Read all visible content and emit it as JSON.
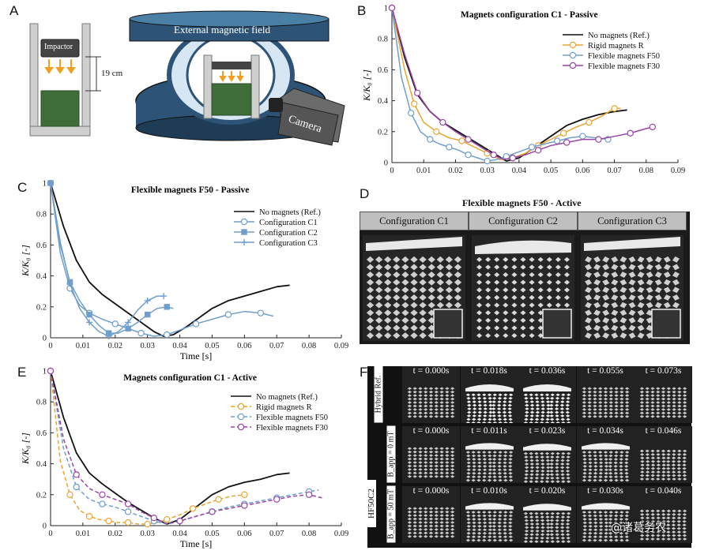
{
  "figure": {
    "panel_a": {
      "label": "A",
      "impactor": "Impactor",
      "distance": "19 cm",
      "field": "External magnetic field",
      "camera": "Camera"
    },
    "panel_b": {
      "label": "B",
      "title": "Magnets configuration C1 - Passive",
      "ylabel": "K/K₀ [-]"
    },
    "panel_c": {
      "label": "C",
      "title": "Flexible magnets F50 - Passive",
      "xlabel": "Time [s]",
      "ylabel": "K/K₀ [-]"
    },
    "panel_d": {
      "label": "D",
      "title": "Flexible magnets F50 - Active",
      "columns": [
        "Configuration C1",
        "Configuration C2",
        "Configuration C3"
      ]
    },
    "panel_e": {
      "label": "E",
      "title": "Magnets configuration C1 - Active",
      "xlabel": "Time [s]",
      "ylabel": "K/K₀ [-]"
    },
    "panel_f": {
      "label": "F",
      "rows": [
        {
          "label": "Hybrid Ref.",
          "times": [
            "t = 0.000s",
            "t = 0.018s",
            "t = 0.036s",
            "t = 0.055s",
            "t = 0.073s"
          ]
        },
        {
          "label": "B_app = 0 mT",
          "times": [
            "t = 0.000s",
            "t = 0.011s",
            "t = 0.023s",
            "t = 0.034s",
            "t = 0.046s"
          ]
        },
        {
          "label": "B_app = 50 mT",
          "times": [
            "t = 0.000s",
            "t = 0.010s",
            "t = 0.020s",
            "t = 0.030s",
            "t = 0.040s"
          ]
        }
      ],
      "group_label": "HF50C2"
    },
    "watermark": "@诸葛务农"
  },
  "colors": {
    "black": "#111111",
    "orange": "#e8a530",
    "blue": "#6f9fcc",
    "purple": "#9b44a8",
    "navy": "#2d5477"
  },
  "chart_data": [
    {
      "id": "B",
      "type": "line",
      "title": "Magnets configuration C1 - Passive",
      "xlabel": "",
      "ylabel": "K/K₀ [-]",
      "xlim": [
        0,
        0.09
      ],
      "ylim": [
        0,
        1
      ],
      "xticks": [
        "0",
        "0.01",
        "0.02",
        "0.03",
        "0.04",
        "0.05",
        "0.06",
        "0.07",
        "0.08",
        "0.09"
      ],
      "yticks": [
        "0",
        "0.2",
        "0.4",
        "0.6",
        "0.8",
        "1"
      ],
      "legend_position": "top-right",
      "series": [
        {
          "name": "No magnets (Ref.)",
          "color": "#111111",
          "marker": "none",
          "dash": "solid",
          "x": [
            0,
            0.004,
            0.008,
            0.012,
            0.016,
            0.02,
            0.024,
            0.028,
            0.032,
            0.036,
            0.04,
            0.045,
            0.05,
            0.055,
            0.06,
            0.065,
            0.07,
            0.074
          ],
          "y": [
            1,
            0.68,
            0.44,
            0.33,
            0.26,
            0.21,
            0.16,
            0.11,
            0.06,
            0.01,
            0.03,
            0.1,
            0.17,
            0.24,
            0.28,
            0.31,
            0.33,
            0.34
          ]
        },
        {
          "name": "Rigid magnets R",
          "color": "#e8a530",
          "marker": "circle",
          "dash": "solid",
          "x": [
            0,
            0.004,
            0.007,
            0.01,
            0.014,
            0.018,
            0.022,
            0.026,
            0.03,
            0.034,
            0.038,
            0.042,
            0.046,
            0.05,
            0.054,
            0.058,
            0.062,
            0.066,
            0.07,
            0.072
          ],
          "y": [
            1,
            0.6,
            0.38,
            0.26,
            0.2,
            0.16,
            0.14,
            0.1,
            0.06,
            0.02,
            0.03,
            0.06,
            0.11,
            0.15,
            0.19,
            0.23,
            0.26,
            0.3,
            0.35,
            0.35
          ]
        },
        {
          "name": "Flexible magnets F50",
          "color": "#6f9fcc",
          "marker": "circle",
          "dash": "solid",
          "x": [
            0,
            0.003,
            0.006,
            0.009,
            0.012,
            0.015,
            0.018,
            0.021,
            0.024,
            0.027,
            0.03,
            0.033,
            0.036,
            0.04,
            0.044,
            0.048,
            0.052,
            0.056,
            0.06,
            0.064,
            0.068
          ],
          "y": [
            1,
            0.55,
            0.32,
            0.2,
            0.15,
            0.12,
            0.1,
            0.08,
            0.05,
            0.03,
            0.01,
            0.02,
            0.04,
            0.07,
            0.1,
            0.12,
            0.14,
            0.16,
            0.17,
            0.16,
            0.15
          ]
        },
        {
          "name": "Flexible magnets F30",
          "color": "#9b44a8",
          "marker": "circle",
          "dash": "solid",
          "x": [
            0,
            0.004,
            0.008,
            0.012,
            0.016,
            0.02,
            0.024,
            0.028,
            0.032,
            0.035,
            0.038,
            0.042,
            0.046,
            0.05,
            0.055,
            0.06,
            0.065,
            0.07,
            0.075,
            0.08,
            0.082
          ],
          "y": [
            1,
            0.7,
            0.45,
            0.33,
            0.26,
            0.2,
            0.15,
            0.1,
            0.05,
            0.02,
            0.03,
            0.05,
            0.08,
            0.11,
            0.13,
            0.15,
            0.15,
            0.17,
            0.19,
            0.22,
            0.23
          ]
        }
      ]
    },
    {
      "id": "C",
      "type": "line",
      "title": "Flexible magnets F50 - Passive",
      "xlabel": "Time [s]",
      "ylabel": "K/K₀ [-]",
      "xlim": [
        0,
        0.09
      ],
      "ylim": [
        0,
        1
      ],
      "xticks": [
        "0",
        "0.01",
        "0.02",
        "0.03",
        "0.04",
        "0.05",
        "0.06",
        "0.07",
        "0.08",
        "0.09"
      ],
      "yticks": [
        "0",
        "0.2",
        "0.4",
        "0.6",
        "0.8",
        "1"
      ],
      "legend_position": "top-right",
      "series": [
        {
          "name": "No magnets (Ref.)",
          "color": "#111111",
          "marker": "none",
          "dash": "solid",
          "x": [
            0,
            0.004,
            0.008,
            0.012,
            0.016,
            0.02,
            0.024,
            0.028,
            0.032,
            0.035,
            0.038,
            0.042,
            0.046,
            0.05,
            0.055,
            0.06,
            0.065,
            0.07,
            0.074
          ],
          "y": [
            1,
            0.72,
            0.5,
            0.36,
            0.28,
            0.22,
            0.16,
            0.1,
            0.04,
            0.01,
            0.02,
            0.07,
            0.13,
            0.19,
            0.24,
            0.27,
            0.3,
            0.33,
            0.34
          ]
        },
        {
          "name": "Configuration C1",
          "color": "#6f9fcc",
          "marker": "circle",
          "dash": "solid",
          "x": [
            0,
            0.003,
            0.006,
            0.009,
            0.012,
            0.016,
            0.02,
            0.024,
            0.028,
            0.032,
            0.036,
            0.04,
            0.045,
            0.05,
            0.055,
            0.06,
            0.065,
            0.069
          ],
          "y": [
            1,
            0.55,
            0.32,
            0.21,
            0.16,
            0.12,
            0.09,
            0.06,
            0.03,
            0.01,
            0.02,
            0.05,
            0.09,
            0.12,
            0.15,
            0.17,
            0.16,
            0.14
          ]
        },
        {
          "name": "Configuration C2",
          "color": "#6f9fcc",
          "marker": "square",
          "dash": "solid",
          "x": [
            0,
            0.003,
            0.006,
            0.009,
            0.012,
            0.015,
            0.018,
            0.021,
            0.024,
            0.027,
            0.03,
            0.033,
            0.036,
            0.038
          ],
          "y": [
            1,
            0.6,
            0.36,
            0.24,
            0.15,
            0.08,
            0.03,
            0.03,
            0.06,
            0.1,
            0.15,
            0.19,
            0.2,
            0.19
          ]
        },
        {
          "name": "Configuration C3",
          "color": "#6f9fcc",
          "marker": "plus",
          "dash": "solid",
          "x": [
            0,
            0.003,
            0.006,
            0.009,
            0.012,
            0.015,
            0.018,
            0.021,
            0.024,
            0.027,
            0.03,
            0.033,
            0.035
          ],
          "y": [
            1,
            0.62,
            0.35,
            0.19,
            0.1,
            0.04,
            0.01,
            0.04,
            0.1,
            0.18,
            0.24,
            0.27,
            0.27
          ]
        }
      ]
    },
    {
      "id": "E",
      "type": "line",
      "title": "Magnets configuration C1 - Active",
      "xlabel": "Time [s]",
      "ylabel": "K/K₀ [-]",
      "xlim": [
        0,
        0.09
      ],
      "ylim": [
        0,
        1
      ],
      "xticks": [
        "0",
        "0.01",
        "0.02",
        "0.03",
        "0.04",
        "0.05",
        "0.06",
        "0.07",
        "0.08",
        "0.09"
      ],
      "yticks": [
        "0",
        "0.2",
        "0.4",
        "0.6",
        "0.8",
        "1"
      ],
      "legend_position": "top-right",
      "series": [
        {
          "name": "No magnets (Ref.)",
          "color": "#111111",
          "marker": "none",
          "dash": "solid",
          "x": [
            0,
            0.004,
            0.008,
            0.012,
            0.016,
            0.02,
            0.024,
            0.028,
            0.032,
            0.036,
            0.04,
            0.045,
            0.05,
            0.055,
            0.06,
            0.065,
            0.07,
            0.074
          ],
          "y": [
            1,
            0.7,
            0.47,
            0.34,
            0.27,
            0.21,
            0.15,
            0.1,
            0.05,
            0.01,
            0.04,
            0.12,
            0.2,
            0.25,
            0.28,
            0.3,
            0.33,
            0.34
          ]
        },
        {
          "name": "Rigid magnets R",
          "color": "#e8a530",
          "marker": "circle",
          "dash": "dash",
          "x": [
            0,
            0.003,
            0.006,
            0.009,
            0.012,
            0.015,
            0.018,
            0.021,
            0.024,
            0.027,
            0.03,
            0.033,
            0.036,
            0.04,
            0.044,
            0.048,
            0.052,
            0.056,
            0.06
          ],
          "y": [
            1,
            0.42,
            0.2,
            0.1,
            0.06,
            0.04,
            0.03,
            0.02,
            0.02,
            0.01,
            0.01,
            0.02,
            0.04,
            0.07,
            0.11,
            0.14,
            0.17,
            0.19,
            0.2
          ]
        },
        {
          "name": "Flexible magnets F50",
          "color": "#6f9fcc",
          "marker": "circle",
          "dash": "dash",
          "x": [
            0,
            0.004,
            0.008,
            0.012,
            0.016,
            0.02,
            0.024,
            0.028,
            0.032,
            0.036,
            0.04,
            0.045,
            0.05,
            0.055,
            0.06,
            0.065,
            0.07,
            0.075,
            0.08,
            0.083
          ],
          "y": [
            1,
            0.5,
            0.25,
            0.17,
            0.14,
            0.12,
            0.09,
            0.06,
            0.03,
            0.01,
            0.03,
            0.06,
            0.09,
            0.12,
            0.14,
            0.16,
            0.18,
            0.2,
            0.22,
            0.23
          ]
        },
        {
          "name": "Flexible magnets F30",
          "color": "#9b44a8",
          "marker": "circle",
          "dash": "dash",
          "x": [
            0,
            0.004,
            0.008,
            0.012,
            0.016,
            0.02,
            0.024,
            0.028,
            0.032,
            0.036,
            0.04,
            0.045,
            0.05,
            0.055,
            0.06,
            0.065,
            0.07,
            0.075,
            0.08,
            0.084
          ],
          "y": [
            1,
            0.56,
            0.33,
            0.24,
            0.2,
            0.17,
            0.14,
            0.09,
            0.05,
            0.01,
            0.03,
            0.06,
            0.09,
            0.11,
            0.13,
            0.15,
            0.17,
            0.19,
            0.2,
            0.18
          ]
        }
      ]
    }
  ]
}
